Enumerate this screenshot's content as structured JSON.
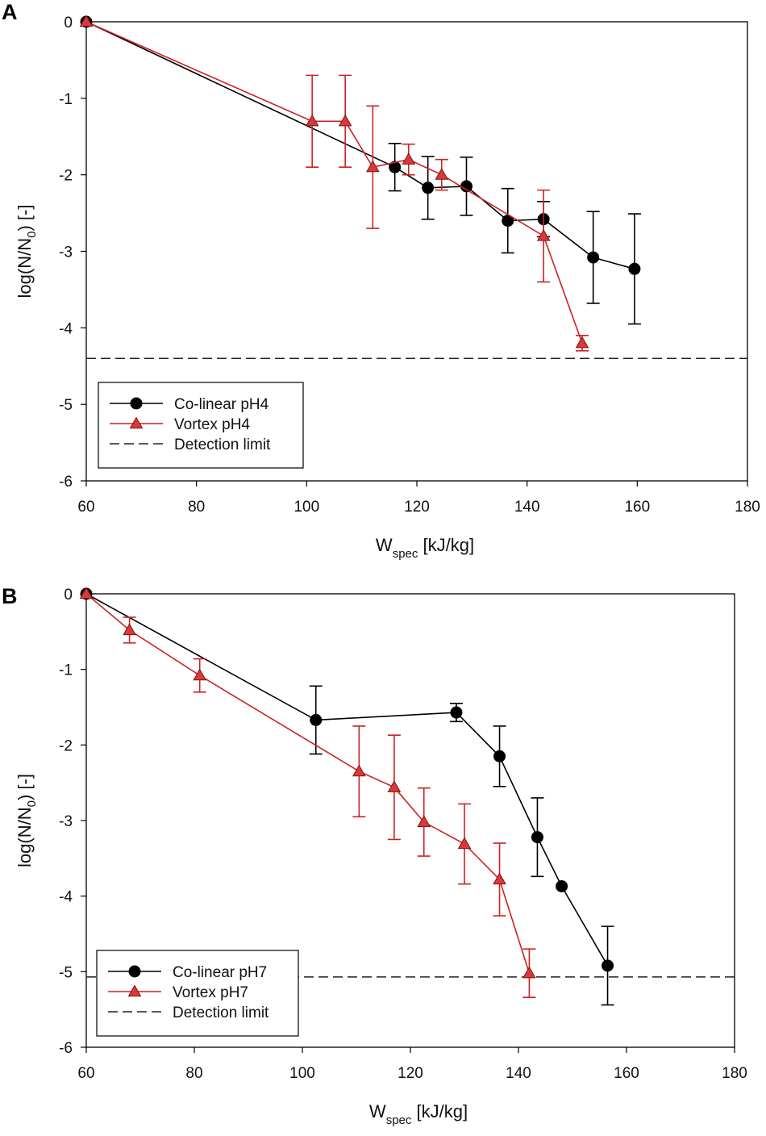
{
  "chart_data": [
    {
      "type": "line",
      "panel_label": "A",
      "title": "",
      "xlabel_main": "W",
      "xlabel_sub": "spec",
      "xlabel_unit": "[kJ/kg]",
      "ylabel_pre": "log(N/N",
      "ylabel_sub": "0",
      "ylabel_post": ") [-]",
      "xlim": [
        60,
        180
      ],
      "ylim": [
        -6,
        0
      ],
      "xticks": [
        60,
        80,
        100,
        120,
        140,
        160,
        180
      ],
      "yticks": [
        0,
        -1,
        -2,
        -3,
        -4,
        -5,
        -6
      ],
      "colors": {
        "colinear": "#000000",
        "vortex": "#cc2222",
        "vortex_fill": "#d63a3a"
      },
      "detection_limit": -4.4,
      "legend_position": "bottom-left",
      "series": [
        {
          "name": "Co-linear pH4",
          "marker": "circle",
          "x": [
            60,
            116,
            122,
            129,
            136.5,
            143,
            152,
            159.5
          ],
          "y": [
            0,
            -1.9,
            -2.17,
            -2.15,
            -2.6,
            -2.58,
            -3.08,
            -3.23
          ],
          "err": [
            0,
            0.31,
            0.41,
            0.38,
            0.42,
            0.23,
            0.6,
            0.72
          ]
        },
        {
          "name": "Vortex pH4",
          "marker": "triangle",
          "x": [
            60,
            101,
            107,
            112,
            118.5,
            124.5,
            143,
            150
          ],
          "y": [
            0,
            -1.3,
            -1.3,
            -1.9,
            -1.8,
            -2.0,
            -2.8,
            -4.2
          ],
          "err": [
            0,
            0.6,
            0.6,
            0.8,
            0.2,
            0.2,
            0.6,
            0.1
          ]
        },
        {
          "name": "Detection limit",
          "marker": "dashed-line"
        }
      ]
    },
    {
      "type": "line",
      "panel_label": "B",
      "title": "",
      "xlabel_main": "W",
      "xlabel_sub": "spec",
      "xlabel_unit": "[kJ/kg]",
      "ylabel_pre": "log(N/N",
      "ylabel_sub": "0",
      "ylabel_post": ") [-]",
      "xlim": [
        60,
        180
      ],
      "ylim": [
        -6,
        0
      ],
      "xticks": [
        60,
        80,
        100,
        120,
        140,
        160,
        180
      ],
      "yticks": [
        0,
        -1,
        -2,
        -3,
        -4,
        -5,
        -6
      ],
      "colors": {
        "colinear": "#000000",
        "vortex": "#cc2222",
        "vortex_fill": "#d63a3a"
      },
      "detection_limit": -5.07,
      "legend_position": "bottom-left",
      "series": [
        {
          "name": "Co-linear pH7",
          "marker": "circle",
          "x": [
            60,
            102.5,
            128.5,
            136.5,
            143.5,
            148,
            156.5
          ],
          "y": [
            0,
            -1.67,
            -1.57,
            -2.15,
            -3.22,
            -3.87,
            -4.92
          ],
          "err": [
            0,
            0.45,
            0.12,
            0.4,
            0.52,
            0,
            0.52
          ]
        },
        {
          "name": "Vortex pH7",
          "marker": "triangle",
          "x": [
            60,
            68,
            81,
            110.5,
            117,
            122.5,
            130,
            136.5,
            142
          ],
          "y": [
            0,
            -0.48,
            -1.08,
            -2.35,
            -2.56,
            -3.02,
            -3.31,
            -3.78,
            -5.02
          ],
          "err": [
            0,
            0.17,
            0.22,
            0.6,
            0.69,
            0.45,
            0.53,
            0.48,
            0.32
          ]
        },
        {
          "name": "Detection limit",
          "marker": "dashed-line"
        }
      ]
    }
  ]
}
